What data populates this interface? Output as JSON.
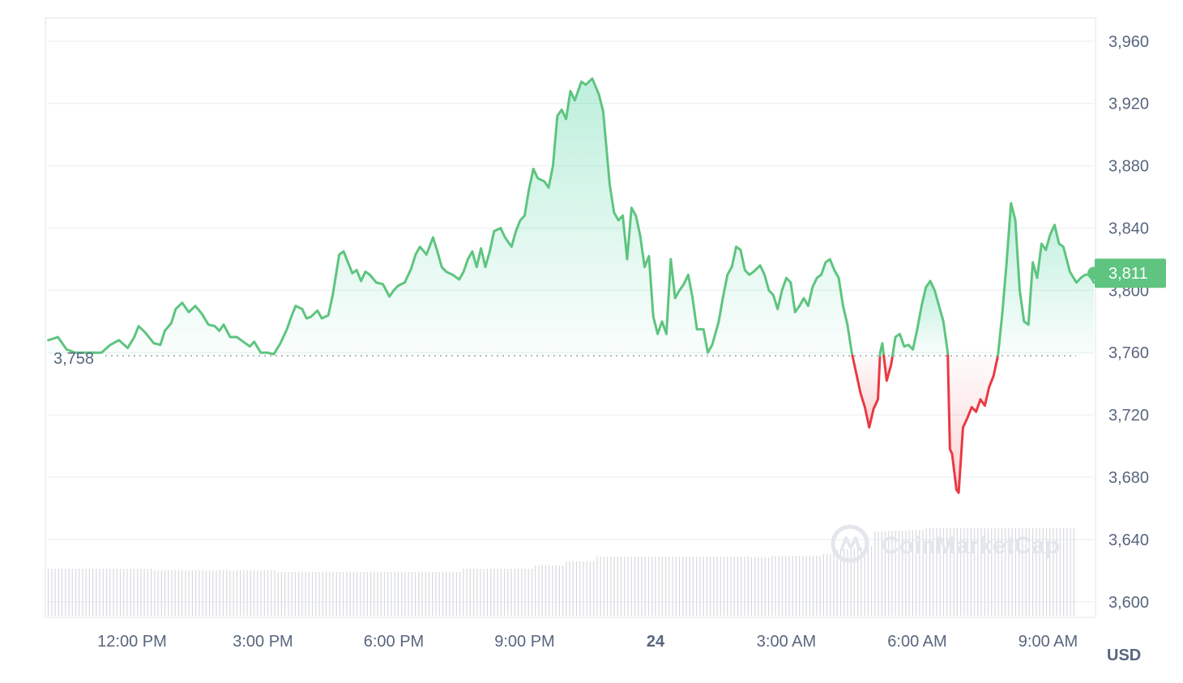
{
  "chart_data": {
    "type": "line",
    "currency_label": "USD",
    "watermark": "CoinMarketCap",
    "reference_value": 3758,
    "reference_label": "3,758",
    "current_value": 3811,
    "current_label": "3,811",
    "ylim": [
      3590,
      3975
    ],
    "y_ticks": [
      {
        "value": 3960,
        "label": "3,960"
      },
      {
        "value": 3920,
        "label": "3,920"
      },
      {
        "value": 3880,
        "label": "3,880"
      },
      {
        "value": 3840,
        "label": "3,840"
      },
      {
        "value": 3800,
        "label": "3,800"
      },
      {
        "value": 3760,
        "label": "3,760"
      },
      {
        "value": 3720,
        "label": "3,720"
      },
      {
        "value": 3680,
        "label": "3,680"
      },
      {
        "value": 3640,
        "label": "3,640"
      },
      {
        "value": 3600,
        "label": "3,600"
      }
    ],
    "x_ticks": [
      {
        "hours": 12,
        "label": "12:00 PM",
        "bold": false
      },
      {
        "hours": 15,
        "label": "3:00 PM",
        "bold": false
      },
      {
        "hours": 18,
        "label": "6:00 PM",
        "bold": false
      },
      {
        "hours": 21,
        "label": "9:00 PM",
        "bold": false
      },
      {
        "hours": 24,
        "label": "24",
        "bold": true
      },
      {
        "hours": 27,
        "label": "3:00 AM",
        "bold": false
      },
      {
        "hours": 30,
        "label": "6:00 AM",
        "bold": false
      },
      {
        "hours": 33,
        "label": "9:00 AM",
        "bold": false
      }
    ],
    "x_range_hours": [
      10.05,
      34.05
    ],
    "colors": {
      "up": "#16c784",
      "line_up": "#5ec47f",
      "down": "#ea3943",
      "tag": "#5ec47f",
      "grid": "#eff2f5",
      "volume": "#d7d9de"
    },
    "series": [
      {
        "values": [
          [
            10.08,
            3768
          ],
          [
            10.3,
            3770
          ],
          [
            10.5,
            3762
          ],
          [
            10.7,
            3760
          ],
          [
            11.0,
            3760
          ],
          [
            11.3,
            3760
          ],
          [
            11.5,
            3765
          ],
          [
            11.7,
            3768
          ],
          [
            11.9,
            3763
          ],
          [
            12.05,
            3770
          ],
          [
            12.15,
            3777
          ],
          [
            12.3,
            3773
          ],
          [
            12.5,
            3766
          ],
          [
            12.65,
            3765
          ],
          [
            12.75,
            3774
          ],
          [
            12.9,
            3779
          ],
          [
            13.0,
            3788
          ],
          [
            13.15,
            3792
          ],
          [
            13.3,
            3786
          ],
          [
            13.45,
            3790
          ],
          [
            13.6,
            3785
          ],
          [
            13.75,
            3778
          ],
          [
            13.9,
            3777
          ],
          [
            14.0,
            3774
          ],
          [
            14.1,
            3778
          ],
          [
            14.25,
            3770
          ],
          [
            14.4,
            3770
          ],
          [
            14.55,
            3767
          ],
          [
            14.7,
            3764
          ],
          [
            14.8,
            3767
          ],
          [
            14.95,
            3760
          ],
          [
            15.1,
            3760
          ],
          [
            15.25,
            3759
          ],
          [
            15.4,
            3766
          ],
          [
            15.55,
            3775
          ],
          [
            15.65,
            3783
          ],
          [
            15.75,
            3790
          ],
          [
            15.9,
            3788
          ],
          [
            16.0,
            3782
          ],
          [
            16.1,
            3783
          ],
          [
            16.25,
            3787
          ],
          [
            16.35,
            3782
          ],
          [
            16.5,
            3784
          ],
          [
            16.6,
            3797
          ],
          [
            16.75,
            3823
          ],
          [
            16.85,
            3825
          ],
          [
            16.95,
            3818
          ],
          [
            17.05,
            3811
          ],
          [
            17.15,
            3813
          ],
          [
            17.25,
            3806
          ],
          [
            17.35,
            3812
          ],
          [
            17.45,
            3810
          ],
          [
            17.6,
            3805
          ],
          [
            17.75,
            3804
          ],
          [
            17.9,
            3796
          ],
          [
            18.0,
            3800
          ],
          [
            18.1,
            3803
          ],
          [
            18.25,
            3805
          ],
          [
            18.4,
            3814
          ],
          [
            18.5,
            3823
          ],
          [
            18.6,
            3828
          ],
          [
            18.75,
            3823
          ],
          [
            18.9,
            3834
          ],
          [
            19.0,
            3825
          ],
          [
            19.1,
            3815
          ],
          [
            19.2,
            3812
          ],
          [
            19.35,
            3810
          ],
          [
            19.5,
            3807
          ],
          [
            19.6,
            3812
          ],
          [
            19.7,
            3820
          ],
          [
            19.8,
            3825
          ],
          [
            19.9,
            3815
          ],
          [
            20.0,
            3827
          ],
          [
            20.1,
            3815
          ],
          [
            20.2,
            3825
          ],
          [
            20.3,
            3838
          ],
          [
            20.45,
            3840
          ],
          [
            20.55,
            3834
          ],
          [
            20.7,
            3828
          ],
          [
            20.8,
            3838
          ],
          [
            20.9,
            3845
          ],
          [
            21.0,
            3848
          ],
          [
            21.1,
            3865
          ],
          [
            21.2,
            3878
          ],
          [
            21.3,
            3872
          ],
          [
            21.45,
            3870
          ],
          [
            21.55,
            3866
          ],
          [
            21.65,
            3880
          ],
          [
            21.75,
            3912
          ],
          [
            21.85,
            3916
          ],
          [
            21.95,
            3910
          ],
          [
            22.05,
            3928
          ],
          [
            22.15,
            3922
          ],
          [
            22.3,
            3934
          ],
          [
            22.4,
            3932
          ],
          [
            22.55,
            3936
          ],
          [
            22.7,
            3926
          ],
          [
            22.8,
            3915
          ],
          [
            22.95,
            3868
          ],
          [
            23.05,
            3850
          ],
          [
            23.15,
            3845
          ],
          [
            23.25,
            3848
          ],
          [
            23.35,
            3820
          ],
          [
            23.45,
            3853
          ],
          [
            23.55,
            3848
          ],
          [
            23.65,
            3835
          ],
          [
            23.75,
            3815
          ],
          [
            23.85,
            3822
          ],
          [
            23.95,
            3783
          ],
          [
            24.05,
            3772
          ],
          [
            24.15,
            3780
          ],
          [
            24.25,
            3772
          ],
          [
            24.35,
            3820
          ],
          [
            24.45,
            3795
          ],
          [
            24.55,
            3800
          ],
          [
            24.65,
            3804
          ],
          [
            24.75,
            3810
          ],
          [
            24.85,
            3795
          ],
          [
            24.95,
            3775
          ],
          [
            25.1,
            3775
          ],
          [
            25.2,
            3760
          ],
          [
            25.3,
            3765
          ],
          [
            25.45,
            3780
          ],
          [
            25.55,
            3796
          ],
          [
            25.65,
            3810
          ],
          [
            25.75,
            3815
          ],
          [
            25.85,
            3828
          ],
          [
            25.95,
            3826
          ],
          [
            26.05,
            3813
          ],
          [
            26.15,
            3810
          ],
          [
            26.25,
            3812
          ],
          [
            26.4,
            3816
          ],
          [
            26.5,
            3810
          ],
          [
            26.6,
            3800
          ],
          [
            26.7,
            3797
          ],
          [
            26.8,
            3788
          ],
          [
            26.9,
            3800
          ],
          [
            27.0,
            3808
          ],
          [
            27.1,
            3805
          ],
          [
            27.2,
            3786
          ],
          [
            27.3,
            3790
          ],
          [
            27.4,
            3795
          ],
          [
            27.5,
            3790
          ],
          [
            27.6,
            3802
          ],
          [
            27.7,
            3808
          ],
          [
            27.8,
            3810
          ],
          [
            27.9,
            3818
          ],
          [
            28.0,
            3820
          ],
          [
            28.1,
            3813
          ],
          [
            28.2,
            3808
          ],
          [
            28.3,
            3790
          ],
          [
            28.4,
            3778
          ],
          [
            28.5,
            3760
          ],
          [
            28.6,
            3747
          ],
          [
            28.7,
            3734
          ],
          [
            28.8,
            3725
          ],
          [
            28.9,
            3712
          ],
          [
            29.0,
            3724
          ],
          [
            29.1,
            3730
          ],
          [
            29.15,
            3760
          ],
          [
            29.2,
            3766
          ],
          [
            29.3,
            3742
          ],
          [
            29.4,
            3752
          ],
          [
            29.5,
            3770
          ],
          [
            29.6,
            3772
          ],
          [
            29.7,
            3764
          ],
          [
            29.8,
            3765
          ],
          [
            29.9,
            3762
          ],
          [
            30.0,
            3775
          ],
          [
            30.1,
            3790
          ],
          [
            30.2,
            3802
          ],
          [
            30.3,
            3806
          ],
          [
            30.4,
            3800
          ],
          [
            30.5,
            3790
          ],
          [
            30.6,
            3780
          ],
          [
            30.7,
            3760
          ],
          [
            30.75,
            3698
          ],
          [
            30.8,
            3695
          ],
          [
            30.9,
            3672
          ],
          [
            30.95,
            3670
          ],
          [
            31.05,
            3712
          ],
          [
            31.15,
            3718
          ],
          [
            31.25,
            3725
          ],
          [
            31.35,
            3722
          ],
          [
            31.45,
            3730
          ],
          [
            31.55,
            3726
          ],
          [
            31.65,
            3738
          ],
          [
            31.75,
            3745
          ],
          [
            31.85,
            3758
          ],
          [
            31.95,
            3785
          ],
          [
            32.05,
            3818
          ],
          [
            32.15,
            3856
          ],
          [
            32.25,
            3845
          ],
          [
            32.35,
            3800
          ],
          [
            32.45,
            3780
          ],
          [
            32.55,
            3778
          ],
          [
            32.65,
            3818
          ],
          [
            32.75,
            3808
          ],
          [
            32.85,
            3830
          ],
          [
            32.95,
            3826
          ],
          [
            33.05,
            3836
          ],
          [
            33.15,
            3842
          ],
          [
            33.25,
            3830
          ],
          [
            33.35,
            3828
          ],
          [
            33.5,
            3812
          ],
          [
            33.65,
            3805
          ],
          [
            33.75,
            3808
          ],
          [
            33.85,
            3810
          ],
          [
            33.95,
            3810
          ],
          [
            34.05,
            3805
          ]
        ]
      }
    ]
  }
}
